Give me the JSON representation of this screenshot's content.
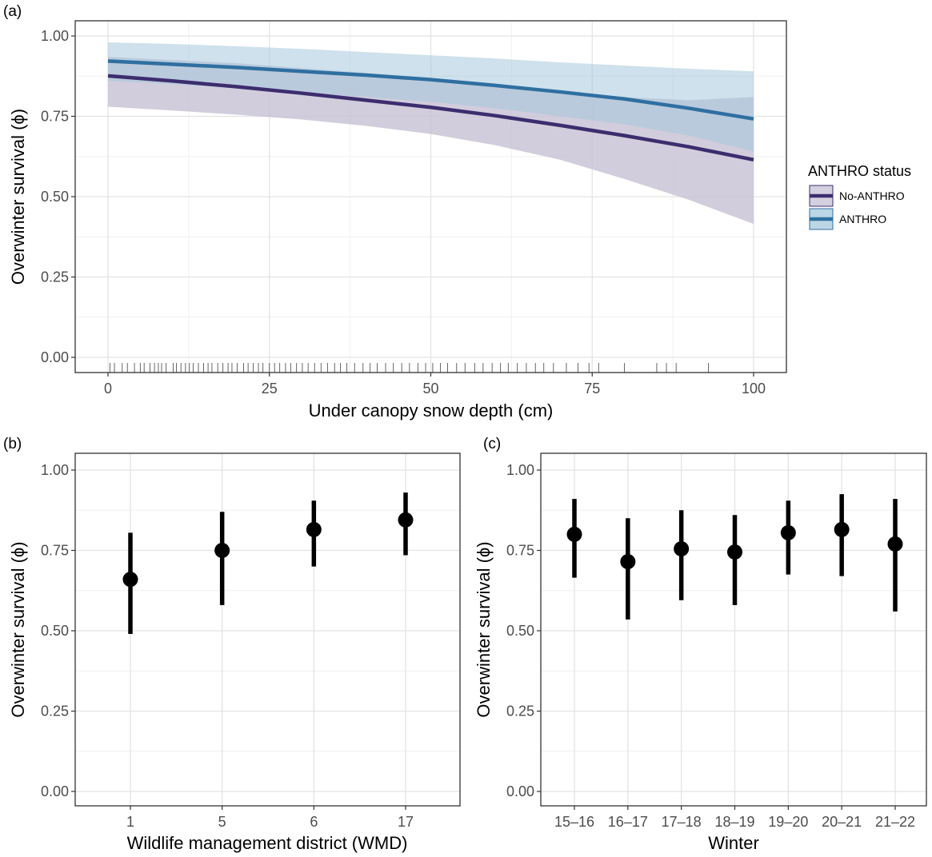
{
  "chart_data": [
    {
      "panel": "(a)",
      "type": "line",
      "xlabel": "Under canopy snow depth (cm)",
      "ylabel": "Overwinter survival (ϕ)",
      "xlim": [
        0,
        100
      ],
      "ylim": [
        0,
        1
      ],
      "xticks": [
        "0",
        "25",
        "50",
        "75",
        "100"
      ],
      "yticks": [
        "0.00",
        "0.25",
        "0.50",
        "0.75",
        "1.00"
      ],
      "grid": true,
      "legend": {
        "title": "ANTHRO status",
        "placement": "right"
      },
      "x": [
        0,
        10,
        20,
        30,
        40,
        50,
        60,
        70,
        80,
        90,
        100
      ],
      "series": [
        {
          "name": "No-ANTHRO",
          "color": "#3c2d6e",
          "fill": "#c5c0d5",
          "values": [
            0.876,
            0.86,
            0.842,
            0.822,
            0.8,
            0.778,
            0.752,
            0.722,
            0.69,
            0.655,
            0.615
          ],
          "lower": [
            0.78,
            0.768,
            0.755,
            0.74,
            0.72,
            0.695,
            0.66,
            0.615,
            0.555,
            0.49,
            0.415
          ],
          "upper": [
            0.935,
            0.925,
            0.915,
            0.9,
            0.885,
            0.87,
            0.85,
            0.83,
            0.81,
            0.8,
            0.81
          ]
        },
        {
          "name": "ANTHRO",
          "color": "#2f6fa0",
          "fill": "#a6c8dc",
          "values": [
            0.922,
            0.912,
            0.902,
            0.89,
            0.878,
            0.864,
            0.846,
            0.826,
            0.804,
            0.775,
            0.742
          ],
          "lower": [
            0.86,
            0.85,
            0.838,
            0.825,
            0.81,
            0.795,
            0.775,
            0.75,
            0.725,
            0.69,
            0.64
          ],
          "upper": [
            0.98,
            0.975,
            0.968,
            0.96,
            0.95,
            0.94,
            0.93,
            0.918,
            0.908,
            0.898,
            0.89
          ]
        }
      ],
      "rug": [
        0.3,
        1,
        2.2,
        3,
        4.1,
        5,
        5.6,
        6.5,
        7.2,
        7.8,
        8.3,
        9,
        10.1,
        10.6,
        11.3,
        12,
        12.6,
        13.2,
        14,
        14.8,
        15.5,
        16.1,
        17,
        17.8,
        18.6,
        19.2,
        20,
        21,
        21.7,
        22.5,
        23.3,
        24,
        25,
        25.8,
        26.6,
        27.5,
        28.3,
        29.2,
        30.1,
        31,
        32,
        33,
        34,
        35.1,
        36,
        37,
        38.2,
        39.5,
        40.6,
        41.7,
        43,
        44.2,
        45.5,
        46.7,
        48,
        49.2,
        50.3,
        51.5,
        52.6,
        54,
        55.3,
        56.8,
        58.1,
        59.5,
        60.8,
        62,
        63.4,
        64.8,
        66.2,
        67.5,
        69,
        71,
        72.8,
        74.5,
        76,
        80,
        85,
        86.5,
        88,
        93
      ]
    },
    {
      "panel": "(b)",
      "type": "scatter",
      "xlabel": "Wildlife management district (WMD)",
      "ylabel": "Overwinter survival (ϕ)",
      "ylim": [
        0,
        1
      ],
      "yticks": [
        "0.00",
        "0.25",
        "0.50",
        "0.75",
        "1.00"
      ],
      "grid": true,
      "categories": [
        "1",
        "5",
        "6",
        "17"
      ],
      "values": [
        0.66,
        0.75,
        0.815,
        0.845
      ],
      "lower": [
        0.49,
        0.58,
        0.7,
        0.735
      ],
      "upper": [
        0.805,
        0.87,
        0.905,
        0.93
      ]
    },
    {
      "panel": "(c)",
      "type": "scatter",
      "xlabel": "Winter",
      "ylabel": "Overwinter survival (ϕ)",
      "ylim": [
        0,
        1
      ],
      "yticks": [
        "0.00",
        "0.25",
        "0.50",
        "0.75",
        "1.00"
      ],
      "grid": true,
      "categories": [
        "15–16",
        "16–17",
        "17–18",
        "18–19",
        "19–20",
        "20–21",
        "21–22"
      ],
      "values": [
        0.8,
        0.715,
        0.755,
        0.745,
        0.805,
        0.815,
        0.77
      ],
      "lower": [
        0.665,
        0.535,
        0.595,
        0.58,
        0.675,
        0.67,
        0.56
      ],
      "upper": [
        0.91,
        0.85,
        0.875,
        0.86,
        0.905,
        0.925,
        0.91
      ]
    }
  ]
}
